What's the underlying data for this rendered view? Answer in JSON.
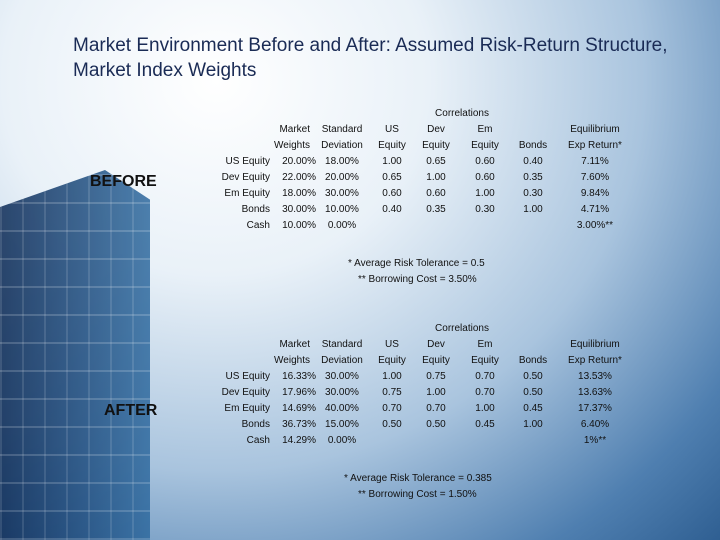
{
  "title": "Market Environment Before and After: Assumed Risk-Return Structure, Market Index Weights",
  "before": {
    "label": "BEFORE",
    "header_top": "Correlations",
    "header1": [
      "Market",
      "Standard",
      "US",
      "Dev",
      "Em",
      "",
      "Equilibrium"
    ],
    "header2": [
      "Weights",
      "Deviation",
      "Equity",
      "Equity",
      "Equity",
      "Bonds",
      "Exp Return*"
    ],
    "rows": [
      {
        "name": "US Equity",
        "weight": "20.00%",
        "sd": "18.00%",
        "us": "1.00",
        "dev": "0.65",
        "em": "0.60",
        "bonds": "0.40",
        "ret": "7.11%"
      },
      {
        "name": "Dev Equity",
        "weight": "22.00%",
        "sd": "20.00%",
        "us": "0.65",
        "dev": "1.00",
        "em": "0.60",
        "bonds": "0.35",
        "ret": "7.60%"
      },
      {
        "name": "Em Equity",
        "weight": "18.00%",
        "sd": "30.00%",
        "us": "0.60",
        "dev": "0.60",
        "em": "1.00",
        "bonds": "0.30",
        "ret": "9.84%"
      },
      {
        "name": "Bonds",
        "weight": "30.00%",
        "sd": "10.00%",
        "us": "0.40",
        "dev": "0.35",
        "em": "0.30",
        "bonds": "1.00",
        "ret": "4.71%"
      },
      {
        "name": "Cash",
        "weight": "10.00%",
        "sd": "0.00%",
        "us": "",
        "dev": "",
        "em": "",
        "bonds": "",
        "ret": "3.00%**"
      }
    ],
    "note1": "* Average Risk Tolerance = 0.5",
    "note2": "** Borrowing Cost = 3.50%"
  },
  "after": {
    "label": "AFTER",
    "header_top": "Correlations",
    "header1": [
      "Market",
      "Standard",
      "US",
      "Dev",
      "Em",
      "",
      "Equilibrium"
    ],
    "header2": [
      "Weights",
      "Deviation",
      "Equity",
      "Equity",
      "Equity",
      "Bonds",
      "Exp Return*"
    ],
    "rows": [
      {
        "name": "US Equity",
        "weight": "16.33%",
        "sd": "30.00%",
        "us": "1.00",
        "dev": "0.75",
        "em": "0.70",
        "bonds": "0.50",
        "ret": "13.53%"
      },
      {
        "name": "Dev Equity",
        "weight": "17.96%",
        "sd": "30.00%",
        "us": "0.75",
        "dev": "1.00",
        "em": "0.70",
        "bonds": "0.50",
        "ret": "13.63%"
      },
      {
        "name": "Em Equity",
        "weight": "14.69%",
        "sd": "40.00%",
        "us": "0.70",
        "dev": "0.70",
        "em": "1.00",
        "bonds": "0.45",
        "ret": "17.37%"
      },
      {
        "name": "Bonds",
        "weight": "36.73%",
        "sd": "15.00%",
        "us": "0.50",
        "dev": "0.50",
        "em": "0.45",
        "bonds": "1.00",
        "ret": "6.40%"
      },
      {
        "name": "Cash",
        "weight": "14.29%",
        "sd": "0.00%",
        "us": "",
        "dev": "",
        "em": "",
        "bonds": "",
        "ret": "1%**"
      }
    ],
    "note1": "* Average Risk Tolerance = 0.385",
    "note2": "** Borrowing Cost = 1.50%"
  }
}
